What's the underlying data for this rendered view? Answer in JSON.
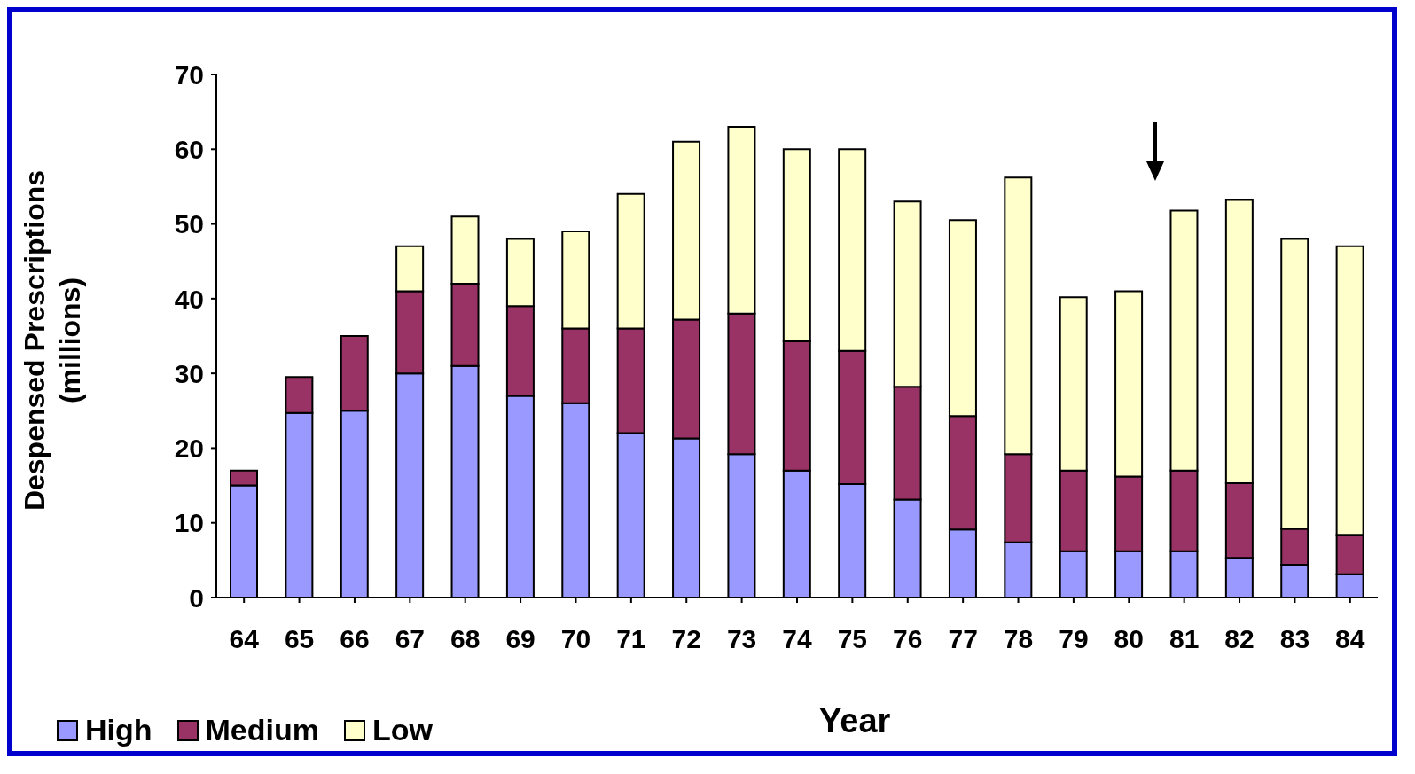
{
  "chart_data": {
    "type": "bar",
    "stacked": true,
    "xlabel": "Year",
    "ylabel": "Despensed Prescriptions (millions)",
    "categories": [
      "64",
      "65",
      "66",
      "67",
      "68",
      "69",
      "70",
      "71",
      "72",
      "73",
      "74",
      "75",
      "76",
      "77",
      "78",
      "79",
      "80",
      "81",
      "82",
      "83",
      "84"
    ],
    "series": [
      {
        "name": "High",
        "color": "#9999ff",
        "values": [
          15,
          24.7,
          25,
          30,
          31,
          27,
          26,
          22,
          21.3,
          19.2,
          17,
          15.2,
          13.1,
          9.1,
          7.4,
          6.2,
          6.2,
          6.2,
          5.3,
          4.4,
          3.1
        ]
      },
      {
        "name": "Medium",
        "color": "#993366",
        "values": [
          2,
          4.8,
          10,
          11,
          11,
          12,
          10,
          14,
          15.9,
          18.8,
          17.3,
          17.8,
          15.1,
          15.2,
          11.8,
          10.8,
          10,
          10.8,
          10,
          4.8,
          5.3
        ]
      },
      {
        "name": "Low",
        "color": "#ffffcc",
        "values": [
          0,
          0,
          0,
          6,
          9,
          9,
          13,
          18,
          23.8,
          25,
          25.7,
          27,
          24.8,
          26.2,
          37,
          23.2,
          24.8,
          34.8,
          37.9,
          38.8,
          38.6
        ]
      }
    ],
    "ylim": [
      0,
      70
    ],
    "yticks": [
      0,
      10,
      20,
      30,
      40,
      50,
      60,
      70
    ],
    "legend": "bottom left"
  }
}
